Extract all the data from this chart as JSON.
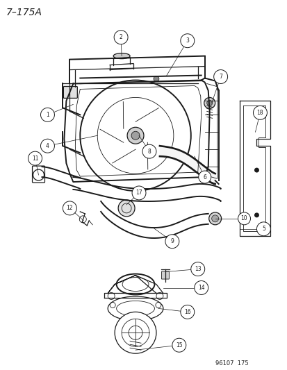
{
  "title": "7–175A",
  "footer": "96107  175",
  "bg_color": "#ffffff",
  "line_color": "#1a1a1a",
  "label_color": "#1a1a1a",
  "figsize": [
    4.14,
    5.33
  ],
  "dpi": 100,
  "title_fontsize": 10,
  "footer_fontsize": 6,
  "circle_r": 0.019,
  "circle_fontsize": 5.5,
  "lw_thick": 1.4,
  "lw_main": 0.9,
  "lw_thin": 0.6
}
